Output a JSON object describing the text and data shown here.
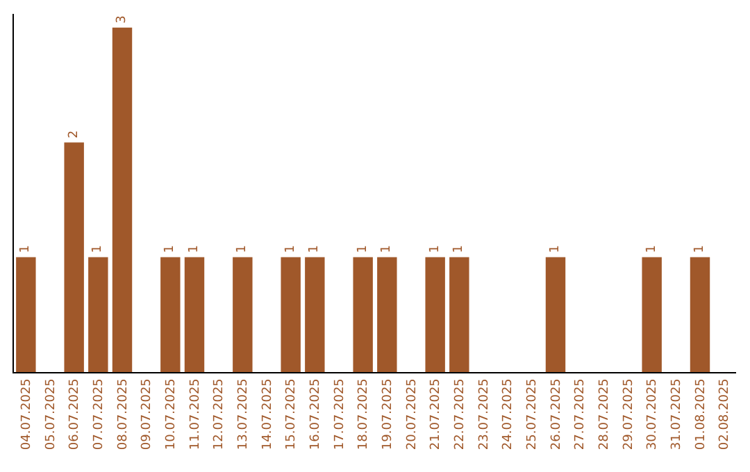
{
  "chart_data": {
    "type": "bar",
    "categories": [
      "04.07.2025",
      "05.07.2025",
      "06.07.2025",
      "07.07.2025",
      "08.07.2025",
      "09.07.2025",
      "10.07.2025",
      "11.07.2025",
      "12.07.2025",
      "13.07.2025",
      "14.07.2025",
      "15.07.2025",
      "16.07.2025",
      "17.07.2025",
      "18.07.2025",
      "19.07.2025",
      "20.07.2025",
      "21.07.2025",
      "22.07.2025",
      "23.07.2025",
      "24.07.2025",
      "25.07.2025",
      "26.07.2025",
      "27.07.2025",
      "28.07.2025",
      "29.07.2025",
      "30.07.2025",
      "31.07.2025",
      "01.08.2025",
      "02.08.2025"
    ],
    "values": [
      1,
      0,
      2,
      1,
      3,
      0,
      1,
      1,
      0,
      1,
      0,
      1,
      1,
      0,
      1,
      1,
      0,
      1,
      1,
      0,
      0,
      0,
      1,
      0,
      0,
      0,
      1,
      0,
      1,
      0
    ],
    "value_labels": [
      "1",
      null,
      "2",
      "1",
      "3",
      null,
      "1",
      "1",
      null,
      "1",
      null,
      "1",
      "1",
      null,
      "1",
      "1",
      null,
      "1",
      "1",
      null,
      null,
      null,
      "1",
      null,
      null,
      null,
      "1",
      null,
      "1",
      null
    ],
    "color": "#a0582a",
    "legend": false,
    "tick_labels": "x"
  }
}
